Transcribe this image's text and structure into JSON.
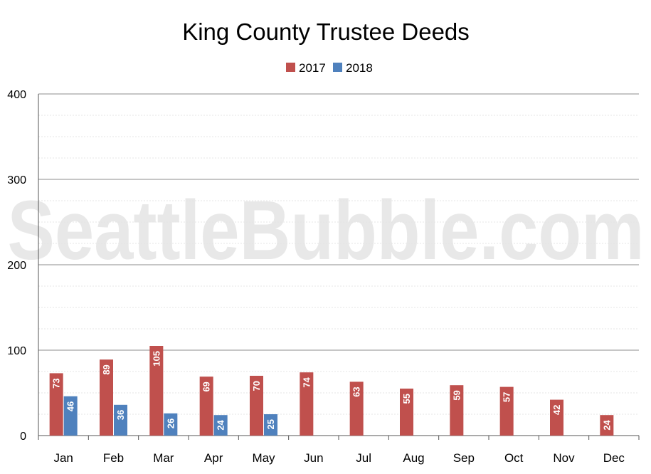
{
  "chart_data": {
    "type": "bar",
    "title": "King County Trustee Deeds",
    "watermark": "SeattleBubble.com",
    "categories": [
      "Jan",
      "Feb",
      "Mar",
      "Apr",
      "May",
      "Jun",
      "Jul",
      "Aug",
      "Sep",
      "Oct",
      "Nov",
      "Dec"
    ],
    "series": [
      {
        "name": "2017",
        "color": "#c0504d",
        "values": [
          73,
          89,
          105,
          69,
          70,
          74,
          63,
          55,
          59,
          57,
          42,
          24
        ]
      },
      {
        "name": "2018",
        "color": "#4f81bd",
        "values": [
          46,
          36,
          26,
          24,
          25,
          null,
          null,
          null,
          null,
          null,
          null,
          null
        ]
      }
    ],
    "ylim": [
      0,
      400
    ],
    "yticks": [
      0,
      100,
      200,
      300,
      400
    ],
    "grid": true,
    "legend_position": "top-center",
    "data_labels": true
  }
}
